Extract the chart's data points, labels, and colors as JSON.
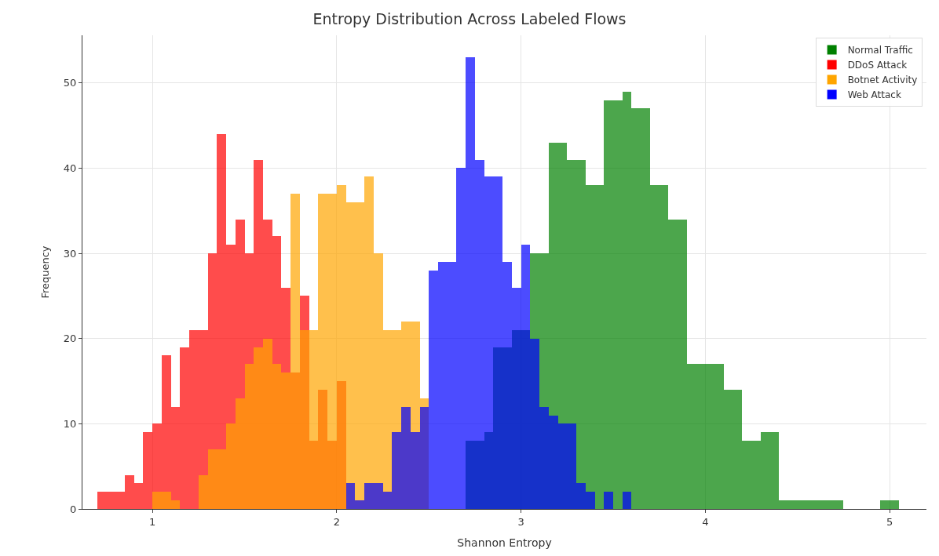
{
  "chart_data": {
    "type": "histogram",
    "title": "Entropy Distribution Across Labeled Flows",
    "xlabel": "Shannon Entropy",
    "ylabel": "Frequency",
    "bins": [
      0.7,
      0.75,
      0.8,
      0.85,
      0.9,
      0.95,
      1,
      1.05,
      1.1,
      1.15,
      1.2,
      1.25,
      1.3,
      1.35,
      1.4,
      1.45,
      1.5,
      1.55,
      1.6,
      1.65,
      1.7,
      1.75,
      1.8,
      1.85,
      1.9,
      1.95,
      2,
      2.05,
      2.1,
      2.15,
      2.2,
      2.25,
      2.3,
      2.35,
      2.4,
      2.45,
      2.5,
      2.55,
      2.6,
      2.65,
      2.7,
      2.75,
      2.8,
      2.85,
      2.9,
      2.95,
      3,
      3.05,
      3.1,
      3.15,
      3.2,
      3.25,
      3.3,
      3.35,
      3.4,
      3.45,
      3.5,
      3.55,
      3.6,
      3.65,
      3.7,
      3.75,
      3.8,
      3.85,
      3.9,
      3.95,
      4,
      4.05,
      4.1,
      4.15,
      4.2,
      4.25,
      4.3,
      4.35,
      4.4,
      4.45,
      4.5,
      4.55,
      4.6,
      4.65,
      4.7,
      4.75,
      4.8,
      4.85,
      4.9,
      4.95,
      5,
      5.05
    ],
    "series": [
      {
        "name": "Normal Traffic",
        "color": "#008000",
        "values": [
          null,
          null,
          null,
          null,
          null,
          null,
          null,
          null,
          null,
          null,
          null,
          null,
          null,
          null,
          null,
          null,
          null,
          null,
          null,
          null,
          null,
          null,
          null,
          null,
          null,
          null,
          null,
          null,
          null,
          null,
          null,
          null,
          null,
          null,
          null,
          null,
          null,
          null,
          null,
          null,
          8,
          8,
          9,
          19,
          19,
          21,
          21,
          30,
          30,
          43,
          43,
          41,
          41,
          38,
          38,
          48,
          48,
          49,
          47,
          47,
          38,
          38,
          34,
          34,
          17,
          17,
          17,
          17,
          14,
          14,
          8,
          8,
          9,
          9,
          1,
          1,
          1,
          1,
          1,
          1,
          1,
          0,
          0,
          0,
          0,
          1,
          1
        ]
      },
      {
        "name": "DDoS Attack",
        "color": "#ff0000",
        "values": [
          2,
          2,
          2,
          4,
          3,
          9,
          10,
          18,
          12,
          19,
          21,
          21,
          30,
          44,
          31,
          34,
          30,
          41,
          34,
          32,
          26,
          16,
          25,
          8,
          14,
          8,
          15,
          null,
          null,
          null,
          null,
          null,
          null,
          null,
          null,
          null,
          null,
          null,
          null,
          null,
          null,
          null,
          null,
          null,
          null,
          null,
          null,
          null,
          null,
          null,
          null,
          null,
          null,
          null,
          null,
          null,
          null,
          null,
          null,
          null,
          null,
          null,
          null,
          null,
          null,
          null,
          null,
          null,
          null,
          null,
          null,
          null,
          null,
          null,
          null,
          null,
          null,
          null,
          null,
          null,
          null,
          null,
          null,
          null,
          null,
          null,
          null
        ]
      },
      {
        "name": "Botnet Activity",
        "color": "#ffa500",
        "values": [
          null,
          null,
          null,
          null,
          null,
          null,
          2,
          2,
          1,
          0,
          0,
          4,
          7,
          7,
          10,
          13,
          17,
          19,
          20,
          17,
          16,
          37,
          21,
          21,
          37,
          37,
          38,
          36,
          36,
          39,
          30,
          21,
          21,
          22,
          22,
          13,
          null,
          null,
          null,
          null,
          null,
          null,
          null,
          null,
          null,
          null,
          null,
          null,
          null,
          null,
          null,
          null,
          null,
          null,
          null,
          null,
          null,
          null,
          null,
          null,
          null,
          null,
          null,
          null,
          null,
          null,
          null,
          null,
          null,
          null,
          null,
          null,
          null,
          null,
          null,
          null,
          null,
          null,
          null,
          null,
          null,
          null,
          null,
          null,
          null,
          null,
          null
        ]
      },
      {
        "name": "Web Attack",
        "color": "#0000ff",
        "values": [
          null,
          null,
          null,
          null,
          null,
          null,
          null,
          null,
          null,
          null,
          null,
          null,
          null,
          null,
          null,
          null,
          null,
          null,
          null,
          null,
          null,
          null,
          null,
          null,
          null,
          null,
          null,
          3,
          1,
          3,
          3,
          2,
          9,
          12,
          9,
          12,
          28,
          29,
          29,
          40,
          53,
          41,
          39,
          39,
          29,
          26,
          31,
          20,
          12,
          11,
          10,
          10,
          3,
          2,
          0,
          2,
          0,
          2,
          null,
          null,
          null,
          null,
          null,
          null,
          null,
          null,
          null,
          null,
          null,
          null,
          null,
          null,
          null,
          null,
          null,
          null,
          null,
          null,
          null,
          null,
          null,
          null,
          null,
          null,
          null,
          null,
          null
        ]
      }
    ],
    "xlim": [
      0.62,
      5.2
    ],
    "ylim": [
      0,
      55.6
    ],
    "xticks": [
      1,
      2,
      3,
      4,
      5
    ],
    "yticks": [
      0,
      10,
      20,
      30,
      40,
      50
    ],
    "grid": true,
    "legend": "top right"
  }
}
